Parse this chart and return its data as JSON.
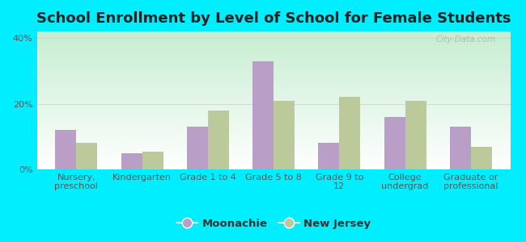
{
  "title": "School Enrollment by Level of School for Female Students",
  "categories": [
    "Nursery,\npreschool",
    "Kindergarten",
    "Grade 1 to 4",
    "Grade 5 to 8",
    "Grade 9 to\n12",
    "College\nundergrad",
    "Graduate or\nprofessional"
  ],
  "moonachie": [
    12,
    5,
    13,
    33,
    8,
    16,
    13
  ],
  "new_jersey": [
    8,
    5.5,
    18,
    21,
    22,
    21,
    7
  ],
  "moonachie_color": "#b99fc7",
  "new_jersey_color": "#bcc99a",
  "background_color": "#00eeff",
  "yticks": [
    0,
    20,
    40
  ],
  "ylim": [
    0,
    42
  ],
  "legend_labels": [
    "Moonachie",
    "New Jersey"
  ],
  "title_fontsize": 13,
  "tick_fontsize": 8,
  "legend_fontsize": 9.5,
  "watermark": "City-Data.com"
}
